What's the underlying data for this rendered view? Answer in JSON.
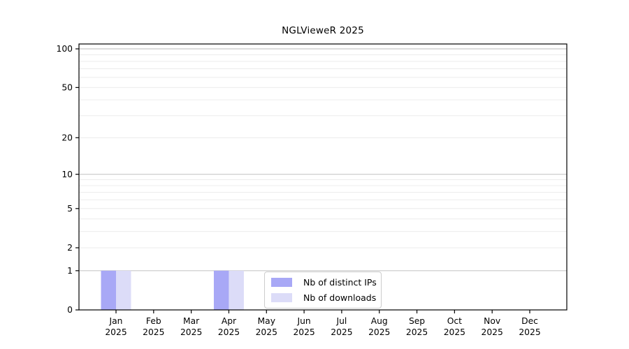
{
  "figure": {
    "background": "#ffffff"
  },
  "chart_data": {
    "type": "bar",
    "title": "NGLVieweR 2025",
    "categories": [
      "Jan 2025",
      "Feb 2025",
      "Mar 2025",
      "Apr 2025",
      "May 2025",
      "Jun 2025",
      "Jul 2025",
      "Aug 2025",
      "Sep 2025",
      "Oct 2025",
      "Nov 2025",
      "Dec 2025"
    ],
    "series": [
      {
        "name": "Nb of distinct IPs",
        "color": "#a8a8f6",
        "values": [
          1,
          0,
          0,
          1,
          0,
          0,
          0,
          0,
          0,
          0,
          0,
          0
        ]
      },
      {
        "name": "Nb of downloads",
        "color": "#dcdcf8",
        "values": [
          1,
          0,
          0,
          1,
          0,
          0,
          0,
          0,
          0,
          0,
          0,
          0
        ]
      }
    ],
    "xlabel": "",
    "ylabel": "",
    "ylim": [
      0,
      100
    ],
    "yscale": "log1p",
    "y_ticks": [
      0,
      1,
      2,
      5,
      10,
      20,
      50,
      100
    ],
    "y_major_gridlines": [
      1,
      10,
      100
    ],
    "y_minor_gridlines": [
      2,
      3,
      4,
      5,
      6,
      7,
      8,
      9,
      20,
      30,
      40,
      50,
      60,
      70,
      80,
      90
    ],
    "grid": "horizontal",
    "legend_position": "inside-bottom-center",
    "colors": {
      "major_grid": "#c8c8c8",
      "minor_grid": "#ececec",
      "axis": "#000000",
      "text": "#000000",
      "legend_border": "#cccccc"
    }
  }
}
